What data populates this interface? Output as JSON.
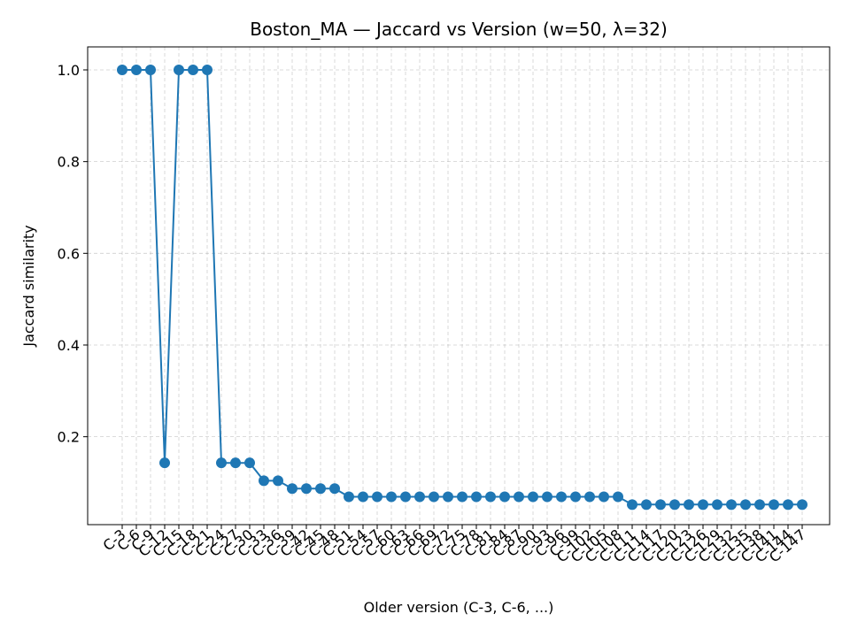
{
  "chart_data": {
    "type": "line",
    "title": "Boston_MA — Jaccard vs Version (w=50, λ=32)",
    "xlabel": "Older version (C-3, C-6, ...)",
    "ylabel": "Jaccard similarity",
    "ylim": [
      0.0,
      1.05
    ],
    "yticks": [
      "0.2",
      "0.4",
      "0.6",
      "0.8",
      "1.0"
    ],
    "grid": true,
    "marker": "circle",
    "color": "#1f77b4",
    "categories": [
      "C-3",
      "C-6",
      "C-9",
      "C-12",
      "C-15",
      "C-18",
      "C-21",
      "C-24",
      "C-27",
      "C-30",
      "C-33",
      "C-36",
      "C-39",
      "C-42",
      "C-45",
      "C-48",
      "C-51",
      "C-54",
      "C-57",
      "C-60",
      "C-63",
      "C-66",
      "C-69",
      "C-72",
      "C-75",
      "C-78",
      "C-81",
      "C-84",
      "C-87",
      "C-90",
      "C-93",
      "C-96",
      "C-99",
      "C-102",
      "C-105",
      "C-108",
      "C-111",
      "C-114",
      "C-117",
      "C-120",
      "C-123",
      "C-126",
      "C-129",
      "C-132",
      "C-135",
      "C-138",
      "C-141",
      "C-144",
      "C-147"
    ],
    "values": [
      1.0,
      1.0,
      1.0,
      0.143,
      1.0,
      1.0,
      1.0,
      0.143,
      0.143,
      0.143,
      0.104,
      0.104,
      0.087,
      0.087,
      0.087,
      0.087,
      0.069,
      0.069,
      0.069,
      0.069,
      0.069,
      0.069,
      0.069,
      0.069,
      0.069,
      0.069,
      0.069,
      0.069,
      0.069,
      0.069,
      0.069,
      0.069,
      0.069,
      0.069,
      0.069,
      0.069,
      0.052,
      0.052,
      0.052,
      0.052,
      0.052,
      0.052,
      0.052,
      0.052,
      0.052,
      0.052,
      0.052,
      0.052,
      0.052
    ]
  }
}
